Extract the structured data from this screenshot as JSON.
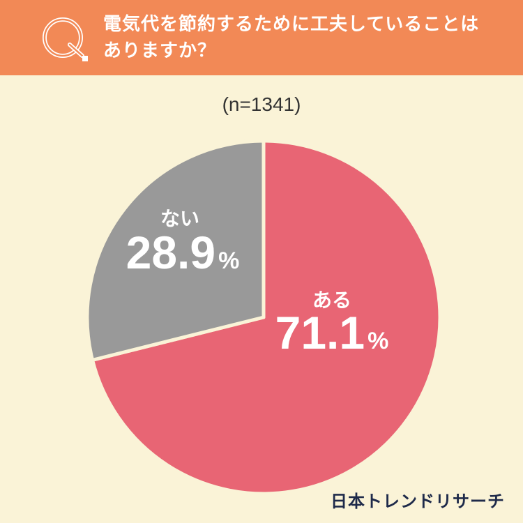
{
  "question": {
    "badge": "Q.",
    "lines": [
      "電気代を節約するために工夫していることは",
      "ありますか？"
    ]
  },
  "sample_size": "(n=1341)",
  "brand": "日本トレンドリサーチ",
  "colors": {
    "header": "#F28956",
    "background": "#FAF3D7",
    "yes": "#E86574",
    "no": "#999999"
  },
  "chart_data": {
    "type": "pie",
    "slices": [
      {
        "label": "ある",
        "value": 71.1,
        "value_text": "71.1",
        "unit": "%",
        "color": "#E86574"
      },
      {
        "label": "ない",
        "value": 28.9,
        "value_text": "28.9",
        "unit": "%",
        "color": "#999999"
      }
    ]
  }
}
